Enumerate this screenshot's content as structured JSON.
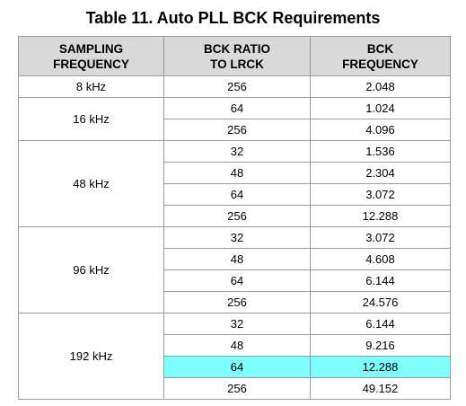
{
  "title": "Table 11. Auto PLL BCK Requirements",
  "header": [
    [
      "SAMPLING",
      "FREQUENCY"
    ],
    [
      "BCK RATIO",
      "TO LRCK"
    ],
    [
      "BCK",
      "FREQUENCY"
    ]
  ],
  "groups": [
    {
      "frequency": "8 kHz",
      "rows": [
        {
          "ratio": "256",
          "bck": "2.048"
        }
      ]
    },
    {
      "frequency": "16 kHz",
      "rows": [
        {
          "ratio": "64",
          "bck": "1.024"
        },
        {
          "ratio": "256",
          "bck": "4.096"
        }
      ]
    },
    {
      "frequency": "48 kHz",
      "rows": [
        {
          "ratio": "32",
          "bck": "1.536"
        },
        {
          "ratio": "48",
          "bck": "2.304"
        },
        {
          "ratio": "64",
          "bck": "3.072"
        },
        {
          "ratio": "256",
          "bck": "12.288"
        }
      ]
    },
    {
      "frequency": "96 kHz",
      "rows": [
        {
          "ratio": "32",
          "bck": "3.072"
        },
        {
          "ratio": "48",
          "bck": "4.608"
        },
        {
          "ratio": "64",
          "bck": "6.144"
        },
        {
          "ratio": "256",
          "bck": "24.576"
        }
      ]
    },
    {
      "frequency": "192 kHz",
      "rows": [
        {
          "ratio": "32",
          "bck": "6.144"
        },
        {
          "ratio": "48",
          "bck": "9.216"
        },
        {
          "ratio": "64",
          "bck": "12.288",
          "highlight": "#80ffff"
        },
        {
          "ratio": "256",
          "bck": "49.152"
        }
      ]
    }
  ]
}
